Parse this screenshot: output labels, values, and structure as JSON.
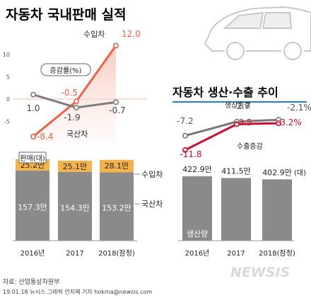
{
  "header": {
    "left_title": "자동차 국내판매 실적",
    "right_title": "자동차 생산·수출 추이"
  },
  "footer": {
    "source": "자료: 산업통상자원부",
    "credit": "19.01.18 뉴시스 그래픽 안지혜 기자 hokma@newsis.com",
    "brand": "NEWSIS"
  },
  "colors": {
    "import": "#e8624a",
    "domestic": "#7d7d7d",
    "import_bar": "#f4b24a",
    "bar_gray": "#8a8a8a",
    "production": "#777777",
    "export": "#c8102e",
    "title_underline": "#2a7fd0"
  },
  "chart_data": [
    {
      "id": "domestic-growth",
      "type": "line",
      "title": "자동차 국내판매 실적",
      "legend": "증감률(%)",
      "categories": [
        "2016년",
        "2017",
        "2018(잠정)"
      ],
      "y_ticks": [
        "10",
        "5",
        "0",
        "-5"
      ],
      "ylim": [
        -10,
        14
      ],
      "series": [
        {
          "name": "수입차",
          "values": [
            -8.4,
            -0.5,
            12.0
          ],
          "labels": [
            "-8.4",
            "-0.5",
            "12.0"
          ],
          "color": "#e8624a"
        },
        {
          "name": "국산차",
          "values": [
            1.0,
            -1.9,
            -0.7
          ],
          "labels": [
            "1.0",
            "-1.9",
            "-0.7"
          ],
          "color": "#7d7d7d"
        }
      ]
    },
    {
      "id": "domestic-sales",
      "type": "bar",
      "stacked": true,
      "unit_label": "판매(대)",
      "categories": [
        "2016년",
        "2017",
        "2018(잠정)"
      ],
      "series": [
        {
          "name": "수입차",
          "values": [
            25.2,
            25.1,
            28.1
          ],
          "labels": [
            "25.2만",
            "25.1만",
            "28.1만"
          ],
          "color": "#f4b24a"
        },
        {
          "name": "국산차",
          "values": [
            157.3,
            154.3,
            153.2
          ],
          "labels": [
            "157.3만",
            "154.3만",
            "153.2만"
          ],
          "color": "#8a8a8a"
        }
      ]
    },
    {
      "id": "production-export-growth",
      "type": "line",
      "title": "자동차 생산·수출 추이",
      "categories": [
        "2016년",
        "2017",
        "2018(잠정)"
      ],
      "ylim": [
        -14,
        2
      ],
      "series": [
        {
          "name": "생산증감",
          "values": [
            -7.2,
            -2.7,
            -2.1
          ],
          "labels": [
            "-7.2",
            "-2.7",
            "-2.1%"
          ],
          "color": "#777777"
        },
        {
          "name": "수출증감",
          "values": [
            -11.8,
            -3.5,
            -3.2
          ],
          "labels": [
            "-11.8",
            "-3.5",
            "-3.2%"
          ],
          "color": "#c8102e"
        }
      ]
    },
    {
      "id": "production-volume",
      "type": "bar",
      "series_label": "생산량",
      "unit": "(대)",
      "categories": [
        "2016년",
        "2017",
        "2018(잠정)"
      ],
      "values": [
        422.9,
        411.5,
        402.9
      ],
      "labels": [
        "422.9만",
        "411.5만",
        "402.9만"
      ],
      "color": "#8a8a8a"
    }
  ]
}
